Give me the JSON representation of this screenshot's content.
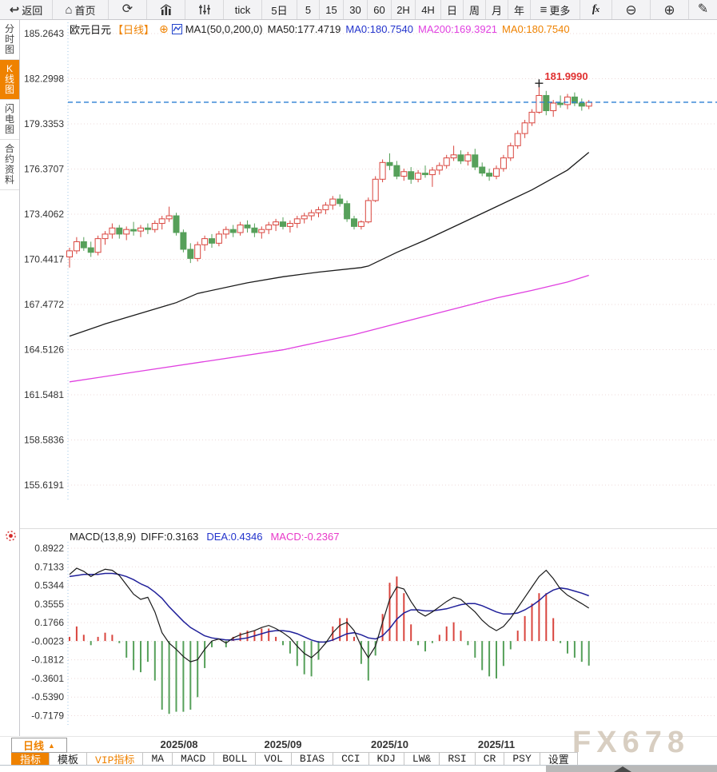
{
  "toolbar": {
    "items": [
      {
        "name": "back-button",
        "icon": "back-arrow",
        "label": "返回"
      },
      {
        "name": "home-button",
        "icon": "home",
        "label": "首页"
      },
      {
        "name": "refresh-button",
        "icon": "refresh",
        "label": ""
      },
      {
        "name": "chart-style-button",
        "icon": "chart-bars",
        "label": ""
      },
      {
        "name": "indicator-params-button",
        "icon": "candle-sliders",
        "label": ""
      },
      {
        "name": "interval-tick-button",
        "icon": "",
        "label": "tick"
      },
      {
        "name": "interval-5day-button",
        "icon": "",
        "label": "5日"
      },
      {
        "name": "interval-5min-button",
        "icon": "",
        "label": "5"
      },
      {
        "name": "interval-15min-button",
        "icon": "",
        "label": "15"
      },
      {
        "name": "interval-30min-button",
        "icon": "",
        "label": "30"
      },
      {
        "name": "interval-60min-button",
        "icon": "",
        "label": "60"
      },
      {
        "name": "interval-2h-button",
        "icon": "",
        "label": "2H"
      },
      {
        "name": "interval-4h-button",
        "icon": "",
        "label": "4H"
      },
      {
        "name": "interval-day-button",
        "icon": "",
        "label": "日"
      },
      {
        "name": "interval-week-button",
        "icon": "",
        "label": "周"
      },
      {
        "name": "interval-month-button",
        "icon": "",
        "label": "月"
      },
      {
        "name": "interval-year-button",
        "icon": "",
        "label": "年"
      },
      {
        "name": "more-button",
        "icon": "menu",
        "label": "更多"
      },
      {
        "name": "formula-button",
        "icon": "fx",
        "label": ""
      },
      {
        "name": "zoom-out-button",
        "icon": "zoom-out",
        "label": ""
      },
      {
        "name": "zoom-in-button",
        "icon": "zoom-in",
        "label": ""
      },
      {
        "name": "draw-button",
        "icon": "pencil",
        "label": ""
      }
    ]
  },
  "sidebar": {
    "items": [
      {
        "name": "sidebar-item-timeshare",
        "label": "分时图",
        "active": false
      },
      {
        "name": "sidebar-item-kline",
        "label": "K线图",
        "active": true
      },
      {
        "name": "sidebar-item-lightning",
        "label": "闪电图",
        "active": false
      },
      {
        "name": "sidebar-item-contract-info",
        "label": "合约资料",
        "active": false
      }
    ]
  },
  "chart_header": {
    "symbol": "欧元日元",
    "period": "【日线】",
    "ma_param": "MA1(50,0,200,0)",
    "ma50": "MA50:177.4719",
    "ma0_blue": "MA0:180.7540",
    "ma200": "MA200:169.3921",
    "ma0_orange": "MA0:180.7540"
  },
  "macd_header": {
    "param": "MACD(13,8,9)",
    "diff": "DIFF:0.3163",
    "dea": "DEA:0.4346",
    "macd": "MACD:-0.2367"
  },
  "colors": {
    "up": "#d9453e",
    "down": "#56a05a",
    "ma50": "#1a1a1a",
    "ma200": "#e040e0",
    "price_line": "#2a7fd4",
    "diff": "#1a1a1a",
    "dea": "#20209a",
    "accent": "#ef8200",
    "high_label": "#e03030",
    "grid": "#ecd9d9",
    "axis": "#9cc4e4",
    "label": "#333333"
  },
  "chart_data": {
    "type": "candlestick",
    "symbol": "欧元日元",
    "interval": "日线",
    "price_axis": [
      185.2643,
      182.2998,
      179.3353,
      176.3707,
      173.4062,
      170.4417,
      167.4772,
      164.5126,
      161.5481,
      158.5836,
      155.6191
    ],
    "last_price": 180.754,
    "high_marker": {
      "index": 66,
      "price": 181.999,
      "label": "181.9990"
    },
    "months": [
      {
        "label": "2025/08",
        "index": 15.4
      },
      {
        "label": "2025/09",
        "index": 30
      },
      {
        "label": "2025/10",
        "index": 45
      },
      {
        "label": "2025/11",
        "index": 60
      }
    ],
    "candles": [
      [
        170.6,
        171.2,
        169.9,
        171.0
      ],
      [
        171.0,
        171.9,
        170.8,
        171.6
      ],
      [
        171.6,
        171.9,
        171.0,
        171.2
      ],
      [
        171.2,
        171.6,
        170.6,
        170.9
      ],
      [
        170.9,
        172.0,
        170.7,
        171.8
      ],
      [
        171.8,
        172.3,
        171.4,
        172.1
      ],
      [
        172.1,
        172.8,
        171.8,
        172.5
      ],
      [
        172.5,
        172.7,
        171.8,
        172.1
      ],
      [
        172.1,
        172.6,
        171.7,
        172.4
      ],
      [
        172.4,
        172.9,
        172.0,
        172.3
      ],
      [
        172.3,
        172.7,
        171.9,
        172.5
      ],
      [
        172.5,
        172.8,
        172.1,
        172.4
      ],
      [
        172.4,
        173.0,
        172.2,
        172.8
      ],
      [
        172.8,
        173.3,
        172.4,
        173.1
      ],
      [
        173.1,
        173.9,
        172.9,
        173.3
      ],
      [
        173.3,
        173.5,
        172.0,
        172.2
      ],
      [
        172.2,
        172.4,
        170.9,
        171.1
      ],
      [
        171.1,
        171.5,
        170.2,
        170.5
      ],
      [
        170.5,
        171.6,
        170.3,
        171.4
      ],
      [
        171.4,
        172.0,
        171.0,
        171.8
      ],
      [
        171.8,
        172.1,
        171.2,
        171.5
      ],
      [
        171.5,
        172.3,
        171.3,
        172.1
      ],
      [
        172.1,
        172.6,
        171.8,
        172.4
      ],
      [
        172.4,
        172.7,
        171.9,
        172.2
      ],
      [
        172.2,
        172.9,
        172.0,
        172.7
      ],
      [
        172.7,
        173.0,
        172.2,
        172.5
      ],
      [
        172.5,
        172.8,
        171.9,
        172.2
      ],
      [
        172.2,
        172.6,
        171.8,
        172.4
      ],
      [
        172.4,
        172.9,
        172.1,
        172.7
      ],
      [
        172.7,
        173.1,
        172.3,
        172.9
      ],
      [
        172.9,
        173.2,
        172.4,
        172.6
      ],
      [
        172.6,
        173.0,
        172.2,
        172.8
      ],
      [
        172.8,
        173.3,
        172.5,
        173.1
      ],
      [
        173.1,
        173.5,
        172.8,
        173.3
      ],
      [
        173.3,
        173.7,
        173.0,
        173.5
      ],
      [
        173.5,
        173.9,
        173.2,
        173.7
      ],
      [
        173.7,
        174.2,
        173.4,
        174.0
      ],
      [
        174.0,
        174.6,
        173.7,
        174.4
      ],
      [
        174.4,
        174.7,
        173.9,
        174.1
      ],
      [
        174.1,
        174.3,
        172.9,
        173.1
      ],
      [
        173.1,
        173.3,
        172.4,
        172.6
      ],
      [
        172.6,
        173.0,
        172.4,
        172.9
      ],
      [
        172.9,
        174.5,
        172.8,
        174.3
      ],
      [
        174.3,
        175.9,
        174.2,
        175.7
      ],
      [
        175.7,
        177.0,
        175.5,
        176.8
      ],
      [
        176.8,
        177.4,
        176.3,
        176.6
      ],
      [
        176.6,
        176.9,
        175.7,
        175.9
      ],
      [
        175.9,
        176.4,
        175.6,
        176.2
      ],
      [
        176.2,
        176.5,
        175.4,
        175.7
      ],
      [
        175.7,
        176.3,
        175.5,
        176.1
      ],
      [
        176.1,
        176.6,
        175.8,
        176.0
      ],
      [
        176.0,
        176.5,
        175.2,
        176.3
      ],
      [
        176.3,
        176.8,
        176.0,
        176.6
      ],
      [
        176.6,
        177.3,
        176.4,
        177.1
      ],
      [
        177.1,
        177.9,
        176.9,
        177.3
      ],
      [
        177.3,
        177.6,
        176.7,
        176.9
      ],
      [
        176.9,
        177.5,
        176.6,
        177.3
      ],
      [
        177.3,
        177.7,
        176.3,
        176.5
      ],
      [
        176.5,
        176.8,
        175.9,
        176.1
      ],
      [
        176.1,
        176.4,
        175.6,
        175.9
      ],
      [
        175.9,
        176.6,
        175.7,
        176.4
      ],
      [
        176.4,
        177.3,
        176.2,
        177.1
      ],
      [
        177.1,
        178.1,
        176.9,
        177.9
      ],
      [
        177.9,
        178.9,
        177.7,
        178.7
      ],
      [
        178.7,
        179.6,
        178.4,
        179.4
      ],
      [
        179.4,
        180.3,
        179.2,
        180.1
      ],
      [
        180.1,
        181.999,
        180.0,
        181.2
      ],
      [
        181.2,
        181.5,
        179.9,
        180.2
      ],
      [
        180.2,
        180.9,
        179.8,
        180.7
      ],
      [
        180.7,
        181.2,
        180.4,
        180.6
      ],
      [
        180.6,
        181.3,
        180.3,
        181.1
      ],
      [
        181.1,
        181.4,
        180.5,
        180.7
      ],
      [
        180.7,
        181.0,
        180.2,
        180.5
      ],
      [
        180.5,
        180.9,
        180.3,
        180.75
      ]
    ],
    "ma50_points": [
      [
        0,
        165.4
      ],
      [
        5,
        166.2
      ],
      [
        10,
        166.9
      ],
      [
        15,
        167.6
      ],
      [
        18,
        168.2
      ],
      [
        25,
        168.9
      ],
      [
        30,
        169.3
      ],
      [
        35,
        169.6
      ],
      [
        41,
        169.9
      ],
      [
        42,
        170.0
      ],
      [
        46,
        170.9
      ],
      [
        50,
        171.7
      ],
      [
        55,
        172.8
      ],
      [
        60,
        173.9
      ],
      [
        65,
        175.0
      ],
      [
        70,
        176.3
      ],
      [
        73,
        177.47
      ]
    ],
    "ma200_points": [
      [
        0,
        162.4
      ],
      [
        10,
        163.1
      ],
      [
        20,
        163.8
      ],
      [
        30,
        164.5
      ],
      [
        35,
        165.0
      ],
      [
        40,
        165.5
      ],
      [
        45,
        166.1
      ],
      [
        50,
        166.7
      ],
      [
        55,
        167.3
      ],
      [
        60,
        167.9
      ],
      [
        65,
        168.4
      ],
      [
        70,
        168.95
      ],
      [
        73,
        169.39
      ]
    ],
    "macd": {
      "axis": [
        0.8922,
        0.7133,
        0.5344,
        0.3555,
        0.1766,
        -0.0023,
        -0.1812,
        -0.3601,
        -0.539,
        -0.7179
      ],
      "diff": [
        0.64,
        0.7,
        0.67,
        0.62,
        0.66,
        0.69,
        0.68,
        0.63,
        0.54,
        0.45,
        0.4,
        0.42,
        0.28,
        0.08,
        -0.02,
        -0.08,
        -0.15,
        -0.2,
        -0.18,
        -0.08,
        0.0,
        0.02,
        -0.02,
        0.03,
        0.06,
        0.08,
        0.1,
        0.13,
        0.15,
        0.12,
        0.08,
        0.03,
        -0.05,
        -0.12,
        -0.16,
        -0.1,
        -0.02,
        0.08,
        0.15,
        0.18,
        0.1,
        -0.05,
        -0.16,
        -0.05,
        0.18,
        0.4,
        0.52,
        0.5,
        0.38,
        0.28,
        0.24,
        0.28,
        0.33,
        0.38,
        0.42,
        0.4,
        0.34,
        0.28,
        0.2,
        0.14,
        0.1,
        0.14,
        0.22,
        0.32,
        0.42,
        0.52,
        0.62,
        0.68,
        0.6,
        0.5,
        0.44,
        0.4,
        0.36,
        0.3163
      ],
      "dea": [
        0.62,
        0.63,
        0.64,
        0.64,
        0.64,
        0.65,
        0.65,
        0.64,
        0.62,
        0.59,
        0.55,
        0.52,
        0.47,
        0.41,
        0.33,
        0.26,
        0.19,
        0.13,
        0.09,
        0.05,
        0.03,
        0.02,
        0.01,
        0.01,
        0.02,
        0.03,
        0.05,
        0.07,
        0.09,
        0.1,
        0.1,
        0.09,
        0.07,
        0.04,
        0.01,
        -0.01,
        -0.01,
        0.01,
        0.04,
        0.07,
        0.08,
        0.06,
        0.03,
        0.02,
        0.05,
        0.12,
        0.21,
        0.27,
        0.3,
        0.3,
        0.29,
        0.29,
        0.3,
        0.31,
        0.33,
        0.35,
        0.36,
        0.36,
        0.34,
        0.31,
        0.28,
        0.26,
        0.26,
        0.27,
        0.3,
        0.34,
        0.39,
        0.45,
        0.49,
        0.51,
        0.5,
        0.48,
        0.46,
        0.4346
      ]
    }
  },
  "bottom": {
    "period_selector": "日线",
    "tabs": [
      {
        "label": "指标",
        "active": true,
        "vip": false
      },
      {
        "label": "模板",
        "active": false,
        "vip": false
      },
      {
        "label": "VIP指标",
        "active": false,
        "vip": true
      },
      {
        "label": "MA",
        "active": false,
        "vip": false
      },
      {
        "label": "MACD",
        "active": false,
        "vip": false
      },
      {
        "label": "BOLL",
        "active": false,
        "vip": false
      },
      {
        "label": "VOL",
        "active": false,
        "vip": false
      },
      {
        "label": "BIAS",
        "active": false,
        "vip": false
      },
      {
        "label": "CCI",
        "active": false,
        "vip": false
      },
      {
        "label": "KDJ",
        "active": false,
        "vip": false
      },
      {
        "label": "LW&",
        "active": false,
        "vip": false
      },
      {
        "label": "RSI",
        "active": false,
        "vip": false
      },
      {
        "label": "CR",
        "active": false,
        "vip": false
      },
      {
        "label": "PSY",
        "active": false,
        "vip": false
      },
      {
        "label": "设置",
        "active": false,
        "vip": false
      }
    ],
    "watermark": "FX678"
  }
}
